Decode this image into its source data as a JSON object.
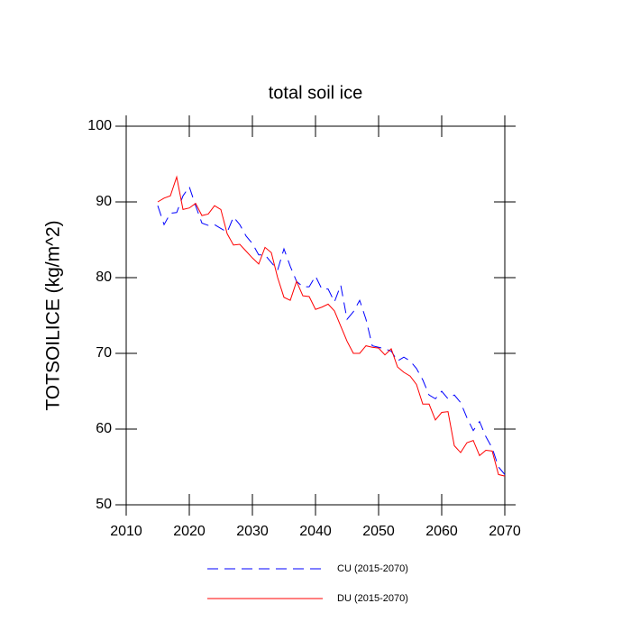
{
  "chart_data": {
    "type": "line",
    "title": "total soil ice",
    "y_label": "TOTSOILICE  (kg/m^2)",
    "x": [
      2015,
      2016,
      2017,
      2018,
      2019,
      2020,
      2021,
      2022,
      2023,
      2024,
      2025,
      2026,
      2027,
      2028,
      2029,
      2030,
      2031,
      2032,
      2033,
      2034,
      2035,
      2036,
      2037,
      2038,
      2039,
      2040,
      2041,
      2042,
      2043,
      2044,
      2045,
      2046,
      2047,
      2048,
      2049,
      2050,
      2051,
      2052,
      2053,
      2054,
      2055,
      2056,
      2057,
      2058,
      2059,
      2060,
      2061,
      2062,
      2063,
      2064,
      2065,
      2066,
      2067,
      2068,
      2069,
      2070
    ],
    "series": [
      {
        "name": "CU (2015-2070)",
        "color": "#0000ff",
        "dashed": true,
        "values": [
          89.5,
          87,
          88.5,
          88.6,
          90.8,
          92,
          89.5,
          87.2,
          86.9,
          87,
          86.5,
          86,
          88,
          87,
          85.5,
          84.5,
          83,
          83,
          82,
          81,
          83.8,
          81.5,
          79.5,
          78.8,
          78.8,
          80.2,
          78.5,
          78.5,
          76.8,
          79,
          74.5,
          75.5,
          77,
          74.5,
          71,
          70.8,
          70.6,
          70.3,
          69,
          69.5,
          69,
          68,
          66.5,
          64.5,
          64,
          65,
          64,
          64.5,
          63.5,
          61.5,
          59.8,
          61,
          59,
          57.5,
          55,
          54
        ]
      },
      {
        "name": "DU (2015-2070)",
        "color": "#ff0000",
        "dashed": false,
        "values": [
          90,
          90.5,
          90.8,
          93.3,
          89,
          89.2,
          89.8,
          88.2,
          88.4,
          89.5,
          89,
          85.8,
          84.3,
          84.4,
          83.5,
          82.6,
          81.8,
          84,
          83.3,
          80,
          77.4,
          77,
          79.5,
          77.6,
          77.5,
          75.8,
          76.1,
          76.5,
          75.6,
          73.6,
          71.6,
          70,
          70,
          71,
          70.8,
          70.7,
          69.8,
          70.6,
          68.2,
          67.5,
          67,
          65.9,
          63.3,
          63.3,
          61.2,
          62.2,
          62.3,
          57.8,
          56.9,
          58.2,
          58.5,
          56.5,
          57.2,
          57.1,
          54,
          53.8
        ]
      }
    ],
    "xlim": [
      2010,
      2070
    ],
    "xticks": [
      2010,
      2020,
      2030,
      2040,
      2050,
      2060,
      2070
    ],
    "ylim": [
      50,
      100
    ],
    "yticks": [
      50,
      60,
      70,
      80,
      90,
      100
    ]
  }
}
